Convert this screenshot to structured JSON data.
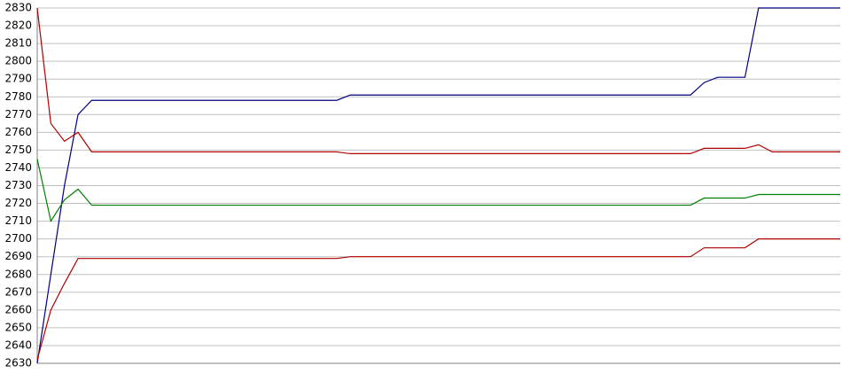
{
  "chart_data": {
    "type": "line",
    "categories": [
      null,
      null,
      null,
      null,
      null,
      null,
      null,
      null,
      null,
      null,
      null,
      null,
      null,
      null,
      null,
      null,
      null,
      null,
      null,
      null,
      null,
      null,
      null,
      null,
      null,
      null,
      null,
      null,
      null,
      null,
      null,
      null,
      null,
      null,
      null,
      null,
      null,
      null,
      null,
      null,
      null,
      null,
      null,
      null,
      null,
      null,
      null,
      null,
      null,
      null,
      null,
      null,
      null,
      null,
      null,
      null,
      null,
      null,
      null,
      null
    ],
    "series": [
      {
        "color": "#000080",
        "values": [
          2630,
          2680,
          2730,
          2770,
          2778,
          2778,
          2778,
          2778,
          2778,
          2778,
          2778,
          2778,
          2778,
          2778,
          2778,
          2778,
          2778,
          2778,
          2778,
          2778,
          2778,
          2778,
          2778,
          2781,
          2781,
          2781,
          2781,
          2781,
          2781,
          2781,
          2781,
          2781,
          2781,
          2781,
          2781,
          2781,
          2781,
          2781,
          2781,
          2781,
          2781,
          2781,
          2781,
          2781,
          2781,
          2781,
          2781,
          2781,
          2781,
          2788,
          2791,
          2791,
          2791,
          2830,
          2830,
          2830,
          2830,
          2830,
          2830,
          2830
        ]
      },
      {
        "color": "#b00000",
        "values": [
          2830,
          2765,
          2755,
          2760,
          2749,
          2749,
          2749,
          2749,
          2749,
          2749,
          2749,
          2749,
          2749,
          2749,
          2749,
          2749,
          2749,
          2749,
          2749,
          2749,
          2749,
          2749,
          2749,
          2748,
          2748,
          2748,
          2748,
          2748,
          2748,
          2748,
          2748,
          2748,
          2748,
          2748,
          2748,
          2748,
          2748,
          2748,
          2748,
          2748,
          2748,
          2748,
          2748,
          2748,
          2748,
          2748,
          2748,
          2748,
          2748,
          2751,
          2751,
          2751,
          2751,
          2753,
          2749,
          2749,
          2749,
          2749,
          2749,
          2749
        ]
      },
      {
        "color": "#008000",
        "values": [
          2745,
          2710,
          2722,
          2728,
          2719,
          2719,
          2719,
          2719,
          2719,
          2719,
          2719,
          2719,
          2719,
          2719,
          2719,
          2719,
          2719,
          2719,
          2719,
          2719,
          2719,
          2719,
          2719,
          2719,
          2719,
          2719,
          2719,
          2719,
          2719,
          2719,
          2719,
          2719,
          2719,
          2719,
          2719,
          2719,
          2719,
          2719,
          2719,
          2719,
          2719,
          2719,
          2719,
          2719,
          2719,
          2719,
          2719,
          2719,
          2719,
          2723,
          2723,
          2723,
          2723,
          2725,
          2725,
          2725,
          2725,
          2725,
          2725,
          2725
        ]
      },
      {
        "color": "#b00000",
        "values": [
          2632,
          2660,
          2675,
          2689,
          2689,
          2689,
          2689,
          2689,
          2689,
          2689,
          2689,
          2689,
          2689,
          2689,
          2689,
          2689,
          2689,
          2689,
          2689,
          2689,
          2689,
          2689,
          2689,
          2690,
          2690,
          2690,
          2690,
          2690,
          2690,
          2690,
          2690,
          2690,
          2690,
          2690,
          2690,
          2690,
          2690,
          2690,
          2690,
          2690,
          2690,
          2690,
          2690,
          2690,
          2690,
          2690,
          2690,
          2690,
          2690,
          2695,
          2695,
          2695,
          2695,
          2700,
          2700,
          2700,
          2700,
          2700,
          2700,
          2700
        ]
      }
    ],
    "ylim": [
      2630,
      2830
    ],
    "yticks": [
      2630,
      2640,
      2650,
      2660,
      2670,
      2680,
      2690,
      2700,
      2710,
      2720,
      2730,
      2740,
      2750,
      2760,
      2770,
      2780,
      2790,
      2800,
      2810,
      2820,
      2830
    ],
    "grid": true
  }
}
